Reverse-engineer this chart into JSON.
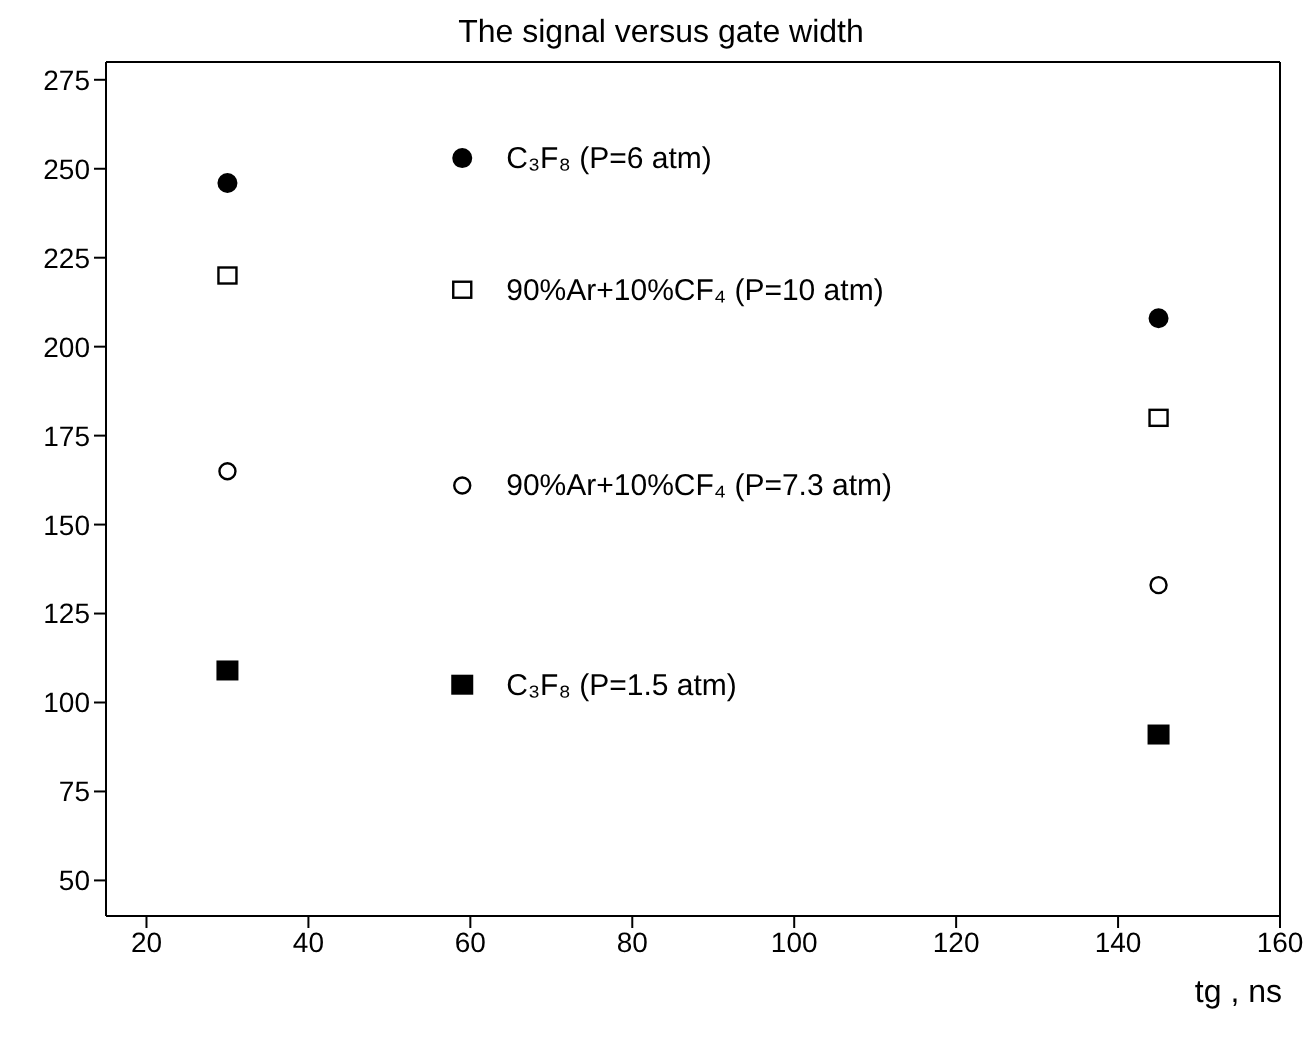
{
  "chart_data": {
    "type": "scatter",
    "title": "The signal versus gate width",
    "xlabel": "tg , ns",
    "x": [
      30,
      59,
      145
    ],
    "xlim": [
      15,
      160
    ],
    "xticks": [
      20,
      40,
      60,
      80,
      100,
      120,
      140,
      160
    ],
    "ylim": [
      40,
      280
    ],
    "yticks": [
      50,
      75,
      100,
      125,
      150,
      175,
      200,
      225,
      250,
      275
    ],
    "legend": false,
    "series": [
      {
        "name": "C₃F₈ (P=6 atm)",
        "color": "#000000",
        "marker": "circle",
        "values": [
          246,
          253,
          208
        ]
      },
      {
        "name": "90%Ar+10%CF₄ (P=10 atm)",
        "color": "#000000",
        "marker": "square-open",
        "values": [
          220,
          216,
          180
        ]
      },
      {
        "name": "90%Ar+10%CF₄ (P=7.3 atm)",
        "color": "#000000",
        "marker": "circle-open",
        "values": [
          165,
          161,
          133
        ]
      },
      {
        "name": "C₃F₈ (P=1.5 atm)",
        "color": "#000000",
        "marker": "square",
        "values": [
          109,
          105,
          91
        ]
      }
    ]
  }
}
